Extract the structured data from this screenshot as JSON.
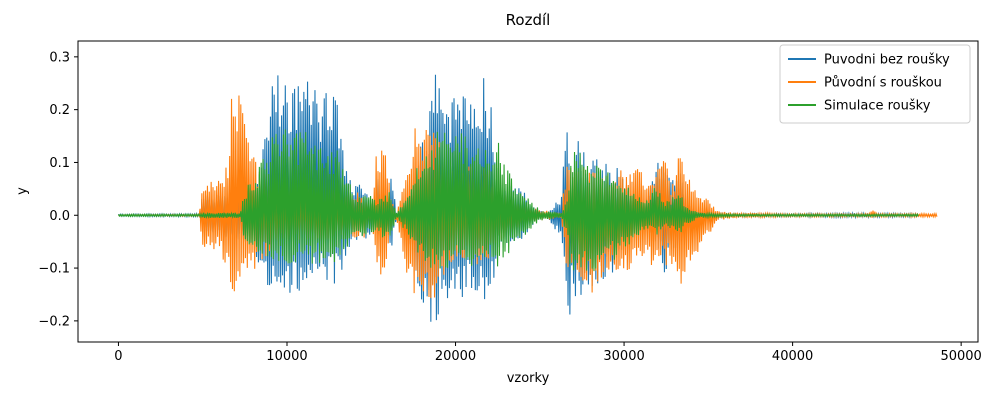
{
  "chart_data": {
    "type": "line",
    "title": "Rozdíl",
    "xlabel": "vzorky",
    "ylabel": "y",
    "xlim": [
      -2400,
      51000
    ],
    "ylim": [
      -0.24,
      0.33
    ],
    "xticks": [
      0,
      10000,
      20000,
      30000,
      40000,
      50000
    ],
    "yticks": [
      -0.2,
      -0.1,
      0.0,
      0.1,
      0.2,
      0.3
    ],
    "xtick_labels": [
      "0",
      "10000",
      "20000",
      "30000",
      "40000",
      "50000"
    ],
    "ytick_labels": [
      "−0.2",
      "−0.1",
      "0.0",
      "0.1",
      "0.2",
      "0.3"
    ],
    "grid": false,
    "legend_position": "upper right",
    "series": [
      {
        "name": "Puvodni bez roušky",
        "color": "#1f77b4",
        "x_start": 0,
        "x_end": 47500,
        "envelope_x": [
          0,
          4800,
          5000,
          7000,
          8000,
          8700,
          9200,
          10000,
          11000,
          12000,
          13000,
          13500,
          13800,
          14500,
          15200,
          15400,
          15800,
          16200,
          16500,
          17000,
          17400,
          17800,
          18300,
          18800,
          19200,
          20000,
          21000,
          21800,
          22300,
          22500,
          23000,
          23500,
          24200,
          24800,
          25500,
          26300,
          26600,
          26900,
          27300,
          27800,
          28300,
          29000,
          29700,
          30200,
          30600,
          31200,
          32000,
          32500,
          32800,
          33200,
          33700,
          34200,
          35000,
          36000,
          37000,
          40000,
          44000,
          47500
        ],
        "envelope_top": [
          0.002,
          0.003,
          0.04,
          0.05,
          0.05,
          0.2,
          0.27,
          0.28,
          0.26,
          0.24,
          0.22,
          0.1,
          0.06,
          0.06,
          0.03,
          0.07,
          0.04,
          0.08,
          0.005,
          0.03,
          0.07,
          0.12,
          0.18,
          0.28,
          0.26,
          0.24,
          0.22,
          0.27,
          0.2,
          0.05,
          0.06,
          0.06,
          0.04,
          0.01,
          0.005,
          0.04,
          0.21,
          0.06,
          0.15,
          0.12,
          0.11,
          0.1,
          0.09,
          0.06,
          0.04,
          0.02,
          0.1,
          0.1,
          0.06,
          0.1,
          0.03,
          0.01,
          0.005,
          0.003,
          0.003,
          0.003,
          0.004,
          0.003
        ],
        "envelope_bottom": [
          -0.002,
          -0.003,
          -0.03,
          -0.05,
          -0.06,
          -0.13,
          -0.14,
          -0.15,
          -0.14,
          -0.13,
          -0.13,
          -0.08,
          -0.05,
          -0.05,
          -0.03,
          -0.06,
          -0.04,
          -0.07,
          -0.005,
          -0.03,
          -0.08,
          -0.15,
          -0.2,
          -0.21,
          -0.17,
          -0.16,
          -0.15,
          -0.17,
          -0.13,
          -0.06,
          -0.06,
          -0.06,
          -0.04,
          -0.01,
          -0.005,
          -0.05,
          -0.22,
          -0.17,
          -0.17,
          -0.15,
          -0.14,
          -0.12,
          -0.1,
          -0.06,
          -0.04,
          -0.02,
          -0.07,
          -0.12,
          -0.07,
          -0.07,
          -0.03,
          -0.01,
          -0.005,
          -0.003,
          -0.003,
          -0.003,
          -0.004,
          -0.003
        ]
      },
      {
        "name": "Původní s rouškou",
        "color": "#ff7f0e",
        "x_start": 0,
        "x_end": 48600,
        "envelope_x": [
          0,
          4800,
          5000,
          6000,
          6600,
          6800,
          7200,
          7600,
          8200,
          8700,
          9200,
          11000,
          13000,
          13500,
          14500,
          15000,
          15400,
          15800,
          16200,
          16500,
          17000,
          17400,
          17800,
          18300,
          18800,
          19500,
          22000,
          23000,
          24000,
          25000,
          26300,
          26600,
          26900,
          27500,
          28300,
          29200,
          30000,
          30700,
          31300,
          32000,
          32500,
          32700,
          32900,
          33300,
          34000,
          34700,
          35500,
          36500,
          40000,
          44500,
          44700,
          45000,
          47500,
          48600
        ],
        "envelope_top": [
          0.001,
          0.002,
          0.07,
          0.07,
          0.12,
          0.31,
          0.26,
          0.15,
          0.1,
          0.08,
          0.06,
          0.05,
          0.05,
          0.04,
          0.05,
          0.01,
          0.15,
          0.13,
          0.03,
          0.005,
          0.08,
          0.14,
          0.2,
          0.16,
          0.17,
          0.1,
          0.09,
          0.04,
          0.02,
          0.01,
          0.005,
          0.12,
          0.1,
          0.1,
          0.08,
          0.08,
          0.09,
          0.1,
          0.07,
          0.1,
          0.11,
          0.06,
          0.06,
          0.12,
          0.06,
          0.04,
          0.01,
          0.005,
          0.003,
          0.003,
          0.014,
          0.003,
          0.003,
          0.003
        ],
        "envelope_bottom": [
          -0.001,
          -0.002,
          -0.07,
          -0.07,
          -0.14,
          -0.16,
          -0.14,
          -0.12,
          -0.1,
          -0.08,
          -0.06,
          -0.05,
          -0.05,
          -0.04,
          -0.05,
          -0.01,
          -0.14,
          -0.13,
          -0.03,
          -0.005,
          -0.09,
          -0.17,
          -0.18,
          -0.17,
          -0.16,
          -0.1,
          -0.09,
          -0.04,
          -0.02,
          -0.01,
          -0.005,
          -0.12,
          -0.1,
          -0.14,
          -0.15,
          -0.12,
          -0.11,
          -0.11,
          -0.1,
          -0.09,
          -0.1,
          -0.09,
          -0.1,
          -0.16,
          -0.1,
          -0.06,
          -0.01,
          -0.005,
          -0.003,
          -0.003,
          -0.008,
          -0.003,
          -0.003,
          -0.003
        ]
      },
      {
        "name": "Simulace roušky",
        "color": "#2ca02c",
        "x_start": 0,
        "x_end": 47500,
        "envelope_x": [
          0,
          4800,
          5000,
          6500,
          7200,
          7500,
          8200,
          8800,
          9300,
          11000,
          12500,
          13000,
          13500,
          14000,
          15000,
          15400,
          15800,
          16200,
          16500,
          17000,
          17400,
          17800,
          18300,
          18800,
          19300,
          21000,
          22000,
          22400,
          23000,
          23600,
          24200,
          25000,
          26300,
          26600,
          26900,
          27400,
          28000,
          28800,
          29600,
          30500,
          31200,
          32000,
          32400,
          32800,
          33200,
          33700,
          34500,
          35500,
          37000,
          40000,
          44000,
          47500
        ],
        "envelope_top": [
          0.002,
          0.002,
          0.005,
          0.005,
          0.005,
          0.05,
          0.08,
          0.13,
          0.17,
          0.16,
          0.14,
          0.13,
          0.08,
          0.04,
          0.04,
          0.03,
          0.05,
          0.04,
          0.005,
          0.03,
          0.06,
          0.1,
          0.12,
          0.16,
          0.17,
          0.15,
          0.13,
          0.15,
          0.1,
          0.05,
          0.04,
          0.01,
          0.005,
          0.04,
          0.12,
          0.12,
          0.1,
          0.09,
          0.07,
          0.05,
          0.03,
          0.06,
          0.03,
          0.03,
          0.05,
          0.02,
          0.005,
          0.003,
          0.002,
          0.002,
          0.002,
          0.002
        ],
        "envelope_bottom": [
          -0.002,
          -0.002,
          -0.005,
          -0.005,
          -0.005,
          -0.05,
          -0.08,
          -0.09,
          -0.09,
          -0.095,
          -0.09,
          -0.09,
          -0.07,
          -0.04,
          -0.04,
          -0.03,
          -0.05,
          -0.04,
          -0.005,
          -0.03,
          -0.06,
          -0.08,
          -0.11,
          -0.11,
          -0.1,
          -0.1,
          -0.09,
          -0.1,
          -0.08,
          -0.05,
          -0.04,
          -0.01,
          -0.005,
          -0.04,
          -0.13,
          -0.12,
          -0.11,
          -0.1,
          -0.08,
          -0.05,
          -0.03,
          -0.04,
          -0.02,
          -0.03,
          -0.04,
          -0.02,
          -0.005,
          -0.003,
          -0.002,
          -0.002,
          -0.002,
          -0.002
        ]
      }
    ]
  }
}
